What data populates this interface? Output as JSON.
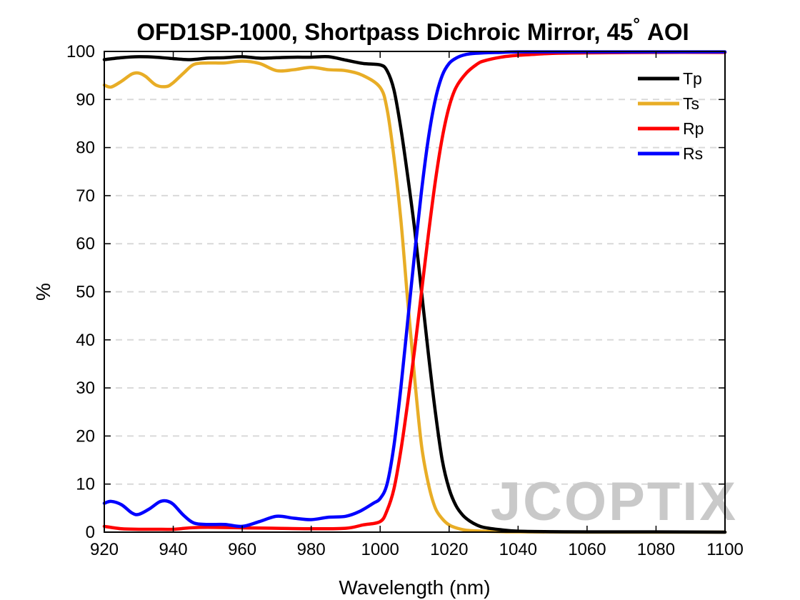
{
  "chart_data": {
    "type": "line",
    "title": "OFD1SP-1000, Shortpass Dichroic Mirror, 45",
    "title_degree": "°",
    "title_suffix": "AOI",
    "xlabel": "Wavelength (nm)",
    "ylabel": "%",
    "xlim": [
      920,
      1100
    ],
    "ylim": [
      0,
      100
    ],
    "xticks": [
      920,
      940,
      960,
      980,
      1000,
      1020,
      1040,
      1060,
      1080,
      1100
    ],
    "yticks": [
      0,
      10,
      20,
      30,
      40,
      50,
      60,
      70,
      80,
      90,
      100
    ],
    "grid": "horizontal dashed",
    "legend_position": "top-right",
    "watermark": "JCOPTIX",
    "series": [
      {
        "name": "Tp",
        "color": "#000000",
        "x": [
          920,
          925,
          930,
          935,
          940,
          945,
          950,
          955,
          960,
          965,
          970,
          975,
          980,
          985,
          990,
          995,
          1000,
          1002,
          1004,
          1006,
          1008,
          1010,
          1012,
          1014,
          1016,
          1018,
          1020,
          1022,
          1024,
          1026,
          1028,
          1030,
          1035,
          1040,
          1050,
          1060,
          1080,
          1100
        ],
        "y": [
          98.3,
          98.7,
          98.9,
          98.8,
          98.5,
          98.3,
          98.6,
          98.7,
          98.9,
          98.6,
          98.7,
          98.8,
          98.8,
          98.9,
          98.2,
          97.5,
          97.2,
          96.0,
          92.0,
          84.0,
          74.0,
          63.0,
          50.0,
          37.0,
          25.0,
          15.0,
          9.0,
          5.5,
          3.5,
          2.3,
          1.5,
          1.0,
          0.5,
          0.2,
          0.1,
          0.05,
          0.05,
          0.0
        ]
      },
      {
        "name": "Ts",
        "color": "#e8ad26",
        "x": [
          920,
          922,
          925,
          928,
          930,
          932,
          935,
          938,
          940,
          943,
          946,
          950,
          955,
          960,
          965,
          970,
          975,
          980,
          985,
          990,
          995,
          1000,
          1002,
          1004,
          1006,
          1008,
          1010,
          1012,
          1014,
          1016,
          1018,
          1020,
          1022,
          1025,
          1030,
          1035,
          1040,
          1060,
          1080,
          1100
        ],
        "y": [
          93.0,
          92.6,
          93.8,
          95.3,
          95.5,
          94.8,
          93.0,
          92.7,
          93.5,
          95.5,
          97.3,
          97.6,
          97.6,
          98.0,
          97.5,
          96.0,
          96.2,
          96.7,
          96.2,
          96.0,
          95.0,
          92.5,
          88.0,
          78.0,
          65.0,
          48.0,
          32.0,
          18.0,
          10.0,
          5.0,
          2.8,
          1.5,
          0.9,
          0.4,
          0.2,
          0.1,
          0.05,
          0.0,
          0.0,
          0.0
        ]
      },
      {
        "name": "Rp",
        "color": "#ff0000",
        "x": [
          920,
          925,
          930,
          935,
          940,
          945,
          950,
          960,
          970,
          980,
          990,
          995,
          1000,
          1002,
          1004,
          1006,
          1008,
          1010,
          1012,
          1014,
          1016,
          1018,
          1020,
          1022,
          1025,
          1028,
          1030,
          1035,
          1040,
          1045,
          1050,
          1060,
          1080,
          1100
        ],
        "y": [
          1.2,
          0.7,
          0.6,
          0.6,
          0.6,
          0.9,
          1.0,
          0.9,
          0.8,
          0.7,
          0.8,
          1.5,
          2.2,
          4.5,
          9.0,
          17.0,
          27.0,
          38.0,
          50.0,
          62.0,
          73.0,
          82.0,
          88.5,
          92.5,
          95.5,
          97.3,
          98.0,
          98.8,
          99.2,
          99.4,
          99.6,
          99.7,
          99.8,
          99.8
        ]
      },
      {
        "name": "Rs",
        "color": "#0000ff",
        "x": [
          920,
          922,
          925,
          928,
          930,
          933,
          936,
          938,
          940,
          943,
          946,
          950,
          955,
          960,
          965,
          970,
          975,
          980,
          985,
          990,
          994,
          998,
          1000,
          1002,
          1004,
          1006,
          1008,
          1010,
          1012,
          1014,
          1016,
          1018,
          1020,
          1022,
          1024,
          1026,
          1030,
          1035,
          1040,
          1060,
          1080,
          1100
        ],
        "y": [
          6.0,
          6.4,
          5.7,
          4.0,
          3.7,
          4.8,
          6.3,
          6.5,
          5.8,
          3.5,
          1.9,
          1.6,
          1.6,
          1.2,
          2.2,
          3.3,
          2.9,
          2.6,
          3.1,
          3.3,
          4.3,
          6.0,
          7.0,
          10.0,
          18.0,
          30.0,
          44.0,
          58.0,
          71.0,
          82.0,
          90.0,
          95.0,
          97.5,
          98.6,
          99.2,
          99.5,
          99.7,
          99.8,
          99.9,
          99.9,
          99.9,
          99.9
        ]
      }
    ]
  }
}
